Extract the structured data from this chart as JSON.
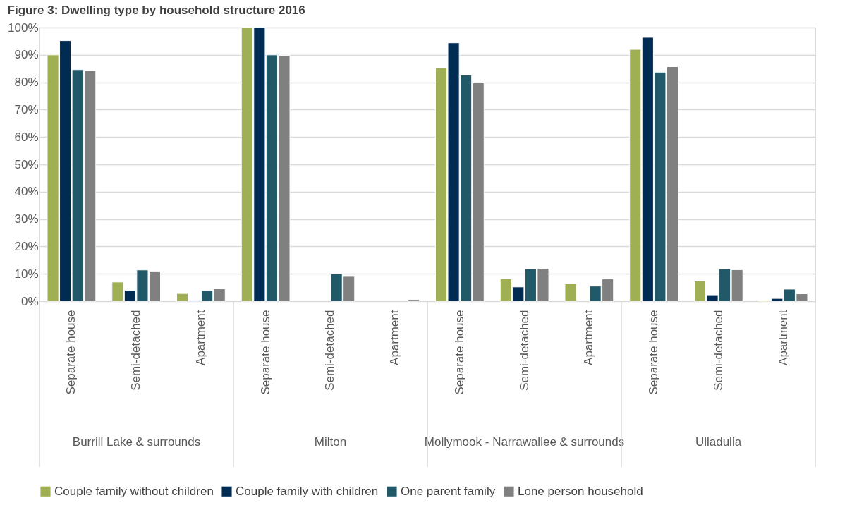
{
  "chart_data": {
    "type": "bar",
    "title": "Figure 3: Dwelling type by household structure 2016",
    "categories": [
      "Separate house",
      "Semi-detached",
      "Apartment",
      "Separate house",
      "Semi-detached",
      "Apartment",
      "Separate house",
      "Semi-detached",
      "Apartment",
      "Separate house",
      "Semi-detached",
      "Apartment"
    ],
    "annotations": [
      "Burrill Lake & surrounds",
      "Milton",
      "Mollymook - Narrawallee & surrounds",
      "Ulladulla"
    ],
    "series": [
      {
        "name": "Couple family without children",
        "color": "#9fb054",
        "values": [
          90.0,
          7.0,
          2.8,
          100.0,
          null,
          null,
          85.3,
          8.2,
          6.4,
          92.0,
          7.4,
          0.4
        ]
      },
      {
        "name": "Couple family with children",
        "color": "#002b53",
        "values": [
          95.2,
          4.0,
          0.4,
          100.0,
          null,
          null,
          94.4,
          5.2,
          null,
          96.4,
          2.3,
          1.0
        ]
      },
      {
        "name": "One parent family",
        "color": "#215968",
        "values": [
          84.6,
          11.4,
          3.9,
          90.0,
          10.0,
          null,
          82.6,
          11.8,
          5.5,
          83.7,
          11.8,
          4.4
        ]
      },
      {
        "name": "Lone person household",
        "color": "#808080",
        "values": [
          84.3,
          11.0,
          4.5,
          89.8,
          9.3,
          0.6,
          79.8,
          12.0,
          8.1,
          85.7,
          11.5,
          2.7
        ]
      }
    ],
    "ylim": [
      0,
      100
    ],
    "yticks": [
      {
        "value": 0,
        "label": "0%"
      },
      {
        "value": 10,
        "label": "10%"
      },
      {
        "value": 20,
        "label": "20%"
      },
      {
        "value": 30,
        "label": "30%"
      },
      {
        "value": 40,
        "label": "40%"
      },
      {
        "value": 50,
        "label": "50%"
      },
      {
        "value": 60,
        "label": "60%"
      },
      {
        "value": 70,
        "label": "70%"
      },
      {
        "value": 80,
        "label": "80%"
      },
      {
        "value": 90,
        "label": "90%"
      },
      {
        "value": 100,
        "label": "100%"
      }
    ],
    "grid": "y",
    "legend": "bottom"
  }
}
